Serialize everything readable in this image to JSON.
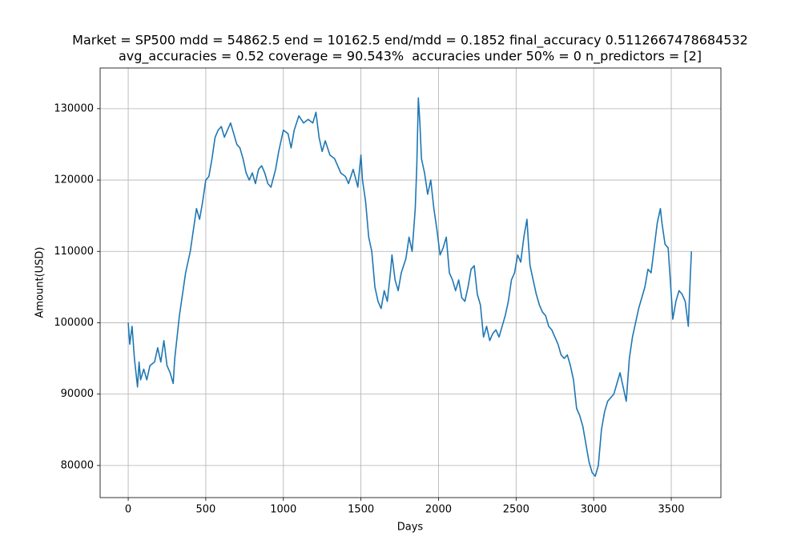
{
  "chart_data": {
    "type": "line",
    "title": [
      "Market = SP500 mdd = 54862.5 end = 10162.5 end/mdd = 0.1852 final_accuracy 0.5112667478684532",
      "avg_accuracies = 0.52 coverage = 90.543%  accuracies under 50% = 0 n_predictors = [2]"
    ],
    "x_label": "Days",
    "y_label": "Amount(USD)",
    "color": "#1f77b4",
    "grid": true,
    "xlim": [
      -181,
      3820
    ],
    "ylim": [
      75500,
      135700
    ],
    "xticks": [
      0,
      500,
      1000,
      1500,
      2000,
      2500,
      3000,
      3500
    ],
    "yticks": [
      80000,
      90000,
      100000,
      110000,
      120000,
      130000
    ],
    "x": [
      0,
      10,
      25,
      40,
      60,
      70,
      80,
      100,
      120,
      140,
      170,
      190,
      210,
      230,
      250,
      270,
      290,
      300,
      310,
      330,
      350,
      370,
      400,
      420,
      440,
      460,
      480,
      500,
      520,
      540,
      560,
      580,
      600,
      620,
      640,
      660,
      680,
      700,
      720,
      740,
      760,
      780,
      800,
      820,
      840,
      860,
      880,
      900,
      920,
      950,
      970,
      1000,
      1030,
      1050,
      1070,
      1100,
      1130,
      1160,
      1190,
      1210,
      1230,
      1250,
      1270,
      1300,
      1330,
      1350,
      1370,
      1400,
      1420,
      1450,
      1480,
      1500,
      1510,
      1530,
      1550,
      1570,
      1590,
      1610,
      1630,
      1650,
      1670,
      1690,
      1700,
      1720,
      1740,
      1760,
      1790,
      1810,
      1830,
      1850,
      1860,
      1870,
      1880,
      1890,
      1910,
      1930,
      1950,
      1970,
      1990,
      2010,
      2030,
      2050,
      2070,
      2090,
      2110,
      2130,
      2150,
      2170,
      2190,
      2210,
      2230,
      2250,
      2270,
      2290,
      2310,
      2330,
      2350,
      2370,
      2390,
      2410,
      2430,
      2450,
      2470,
      2490,
      2510,
      2530,
      2550,
      2570,
      2580,
      2590,
      2610,
      2630,
      2650,
      2670,
      2690,
      2710,
      2730,
      2750,
      2770,
      2790,
      2810,
      2830,
      2850,
      2870,
      2890,
      2910,
      2930,
      2950,
      2970,
      2990,
      3010,
      3030,
      3050,
      3070,
      3090,
      3110,
      3130,
      3150,
      3170,
      3190,
      3210,
      3230,
      3250,
      3270,
      3290,
      3310,
      3330,
      3350,
      3370,
      3390,
      3410,
      3430,
      3440,
      3460,
      3480,
      3500,
      3510,
      3530,
      3550,
      3570,
      3590,
      3610,
      3620,
      3630
    ],
    "values": [
      100000,
      97000,
      99500,
      95000,
      91000,
      94500,
      92000,
      93500,
      92000,
      94000,
      94500,
      96500,
      94500,
      97500,
      94000,
      93000,
      91500,
      95000,
      97000,
      101000,
      104000,
      107000,
      110000,
      113000,
      116000,
      114500,
      117000,
      120000,
      120500,
      123000,
      126000,
      127000,
      127500,
      126000,
      127000,
      128000,
      126500,
      125000,
      124500,
      123000,
      121000,
      120000,
      121000,
      119500,
      121500,
      122000,
      121000,
      119500,
      119000,
      121500,
      124000,
      127000,
      126500,
      124500,
      127000,
      129000,
      128000,
      128500,
      128000,
      129500,
      126000,
      124000,
      125500,
      123500,
      123000,
      122000,
      121000,
      120500,
      119500,
      121500,
      119000,
      123500,
      120000,
      117000,
      112000,
      110000,
      105000,
      103000,
      102000,
      104500,
      103000,
      107000,
      109500,
      106000,
      104500,
      107000,
      109000,
      112000,
      110000,
      116000,
      122000,
      131500,
      128000,
      123000,
      121000,
      118000,
      120000,
      116000,
      113000,
      109500,
      110500,
      112000,
      107000,
      106000,
      104500,
      106000,
      103500,
      103000,
      105000,
      107500,
      108000,
      104000,
      102500,
      98000,
      99500,
      97500,
      98500,
      99000,
      98000,
      99500,
      101000,
      103000,
      106000,
      107000,
      109500,
      108500,
      112000,
      114500,
      111000,
      108000,
      106000,
      104000,
      102500,
      101500,
      101000,
      99500,
      99000,
      98000,
      97000,
      95500,
      95000,
      95500,
      94000,
      92000,
      88000,
      87000,
      85500,
      83000,
      80500,
      79000,
      78500,
      80000,
      85000,
      87500,
      89000,
      89500,
      90000,
      91500,
      93000,
      91000,
      89000,
      95000,
      98000,
      100000,
      102000,
      103500,
      105000,
      107500,
      107000,
      110500,
      114000,
      116000,
      114000,
      111000,
      110500,
      104000,
      100500,
      103000,
      104500,
      104000,
      103000,
      99500,
      105000,
      110000
    ]
  }
}
